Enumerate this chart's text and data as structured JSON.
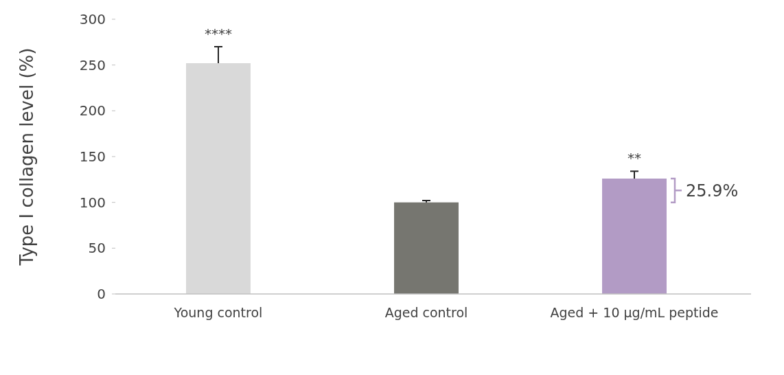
{
  "chart_data": {
    "type": "bar",
    "ylabel": "Type I collagen level (%)",
    "categories": [
      "Young control",
      "Aged control",
      "Aged + 10 µg/mL peptide"
    ],
    "values": [
      252,
      100,
      126
    ],
    "colors": [
      "#d9d9d9",
      "#767670",
      "#b29bc5"
    ],
    "errors": [
      [
        252,
        270
      ],
      [
        100,
        102
      ],
      [
        126,
        134
      ]
    ],
    "ylim": [
      0,
      300
    ],
    "yticks": [
      0,
      50,
      100,
      150,
      200,
      250,
      300
    ],
    "grid": false,
    "annotations": [
      {
        "text": "****",
        "x": "Young control",
        "y": 270
      },
      {
        "text": "**",
        "x": "Aged + 10 µg/mL peptide",
        "y": 134
      },
      "25.9%"
    ]
  }
}
